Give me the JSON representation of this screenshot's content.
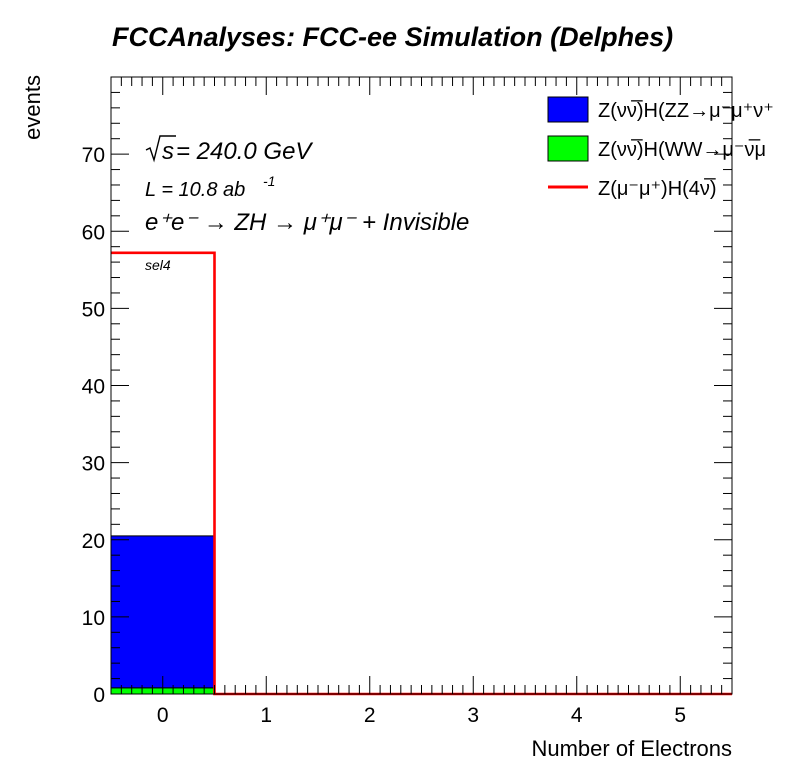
{
  "chart_data": {
    "type": "bar",
    "title": "FCCAnalyses: FCC-ee Simulation (Delphes)",
    "xlabel": "Number of Electrons",
    "ylabel": "events",
    "x_ticks": [
      "0",
      "1",
      "2",
      "3",
      "4",
      "5"
    ],
    "y_ticks": [
      "0",
      "10",
      "20",
      "30",
      "40",
      "50",
      "60",
      "70"
    ],
    "xlim": [
      -0.5,
      5.5
    ],
    "ylim": [
      0,
      80
    ],
    "bins": [
      0,
      1,
      2,
      3,
      4,
      5
    ],
    "stacked_series": [
      {
        "name": "Z(νν̅)H(WW→μ⁻ν̅μ",
        "color": "#00ff00",
        "values": [
          0.8,
          0,
          0,
          0,
          0,
          0
        ]
      },
      {
        "name": "Z(νν̅)H(ZZ→μ⁻μ⁺ν⁺",
        "color": "#0000ff",
        "values": [
          19.7,
          0,
          0,
          0,
          0,
          0
        ]
      }
    ],
    "line_series": [
      {
        "name": "Z(μ⁻μ⁺)H(4ν̅)",
        "color": "#ff0000",
        "values": [
          57.2,
          0,
          0,
          0,
          0,
          0
        ]
      }
    ],
    "legend_position": "top-right",
    "annotations": {
      "sqrt_s_label": "s",
      "sqrt_s_value": " = 240.0 GeV",
      "lumi_text": "L = 10.8 ab",
      "lumi_exp": "-1",
      "process_text": "e⁺e⁻ → ZH → μ⁺μ⁻ + Invisible",
      "selection": "sel4"
    }
  }
}
